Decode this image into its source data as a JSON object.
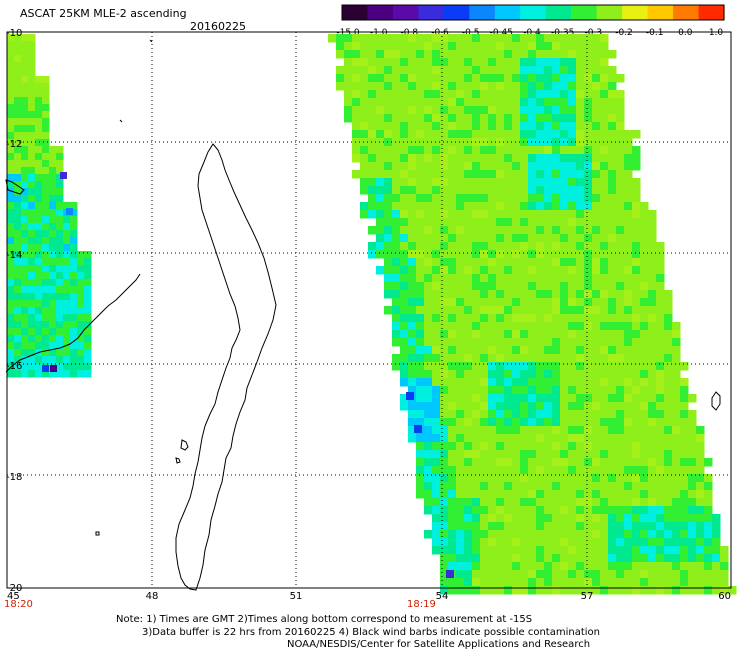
{
  "title": "ASCAT 25KM MLE-2 ascending",
  "date": "20160225",
  "colorbar": {
    "labels": [
      "-15.0",
      "-1.0",
      "-0.8",
      "-0.6",
      "-0.5",
      "-0.45",
      "-0.4",
      "-0.35",
      "-0.3",
      "-0.2",
      "-0.1",
      "0.0",
      "1.0"
    ],
    "colors": [
      "#2b0033",
      "#4b0082",
      "#5a0aa8",
      "#3a2bdc",
      "#0b3cf5",
      "#0a86ff",
      "#00c8ff",
      "#00f0e0",
      "#00e890",
      "#33ef33",
      "#8fef1a",
      "#e8f012",
      "#ffc800",
      "#ff7a00",
      "#ff2a00"
    ]
  },
  "axes": {
    "x_ticks": [
      "45",
      "48",
      "51",
      "54",
      "57",
      "60"
    ],
    "y_ticks": [
      "-10",
      "-12",
      "-14",
      "-16",
      "-18",
      "-20"
    ],
    "pass_times": [
      "18:20",
      "18:19"
    ]
  },
  "notes": [
    "Note: 1) Times are GMT 2)Times along bottom correspond to measurement at -15S",
    "3)Data buffer is 22 hrs from 20160225 4) Black wind barbs indicate possible contamination",
    "NOAA/NESDIS/Center for Satellite Applications and Research"
  ],
  "colors": {
    "time_label": "#cc2200",
    "coast": "#000000",
    "grid": "#000000"
  }
}
